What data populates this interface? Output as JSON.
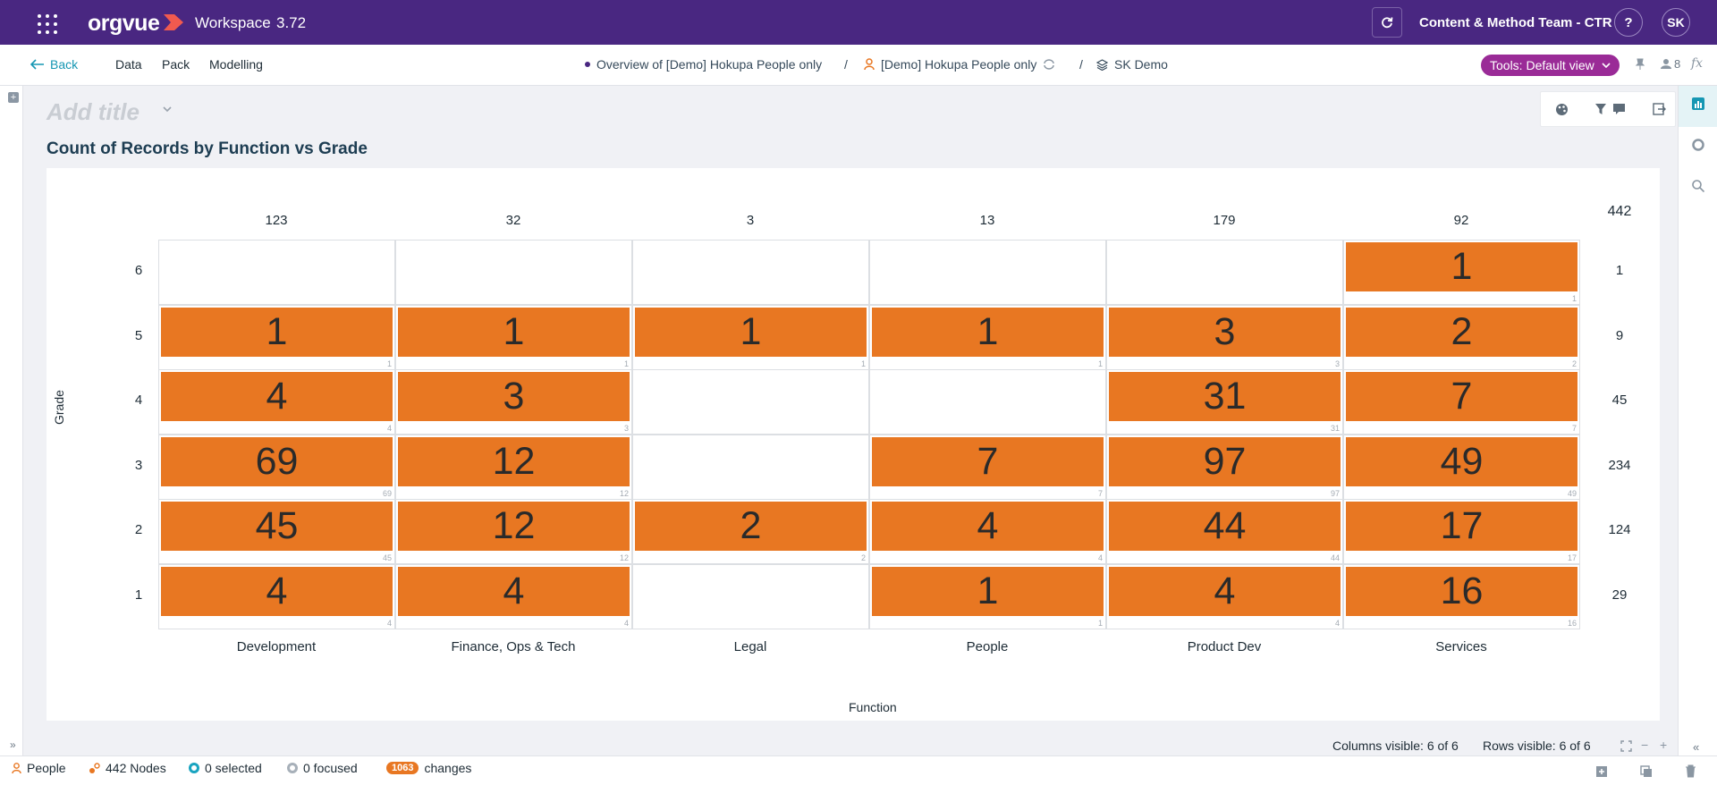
{
  "topbar": {
    "brand": "orgvue",
    "workspace_label": "Workspace",
    "version": "3.72",
    "team": "Content & Method Team - CTR",
    "help": "?",
    "user_initials": "SK"
  },
  "nav": {
    "back": "Back",
    "data": "Data",
    "pack": "Pack",
    "modelling": "Modelling",
    "crumb_view": "Overview of [Demo] Hokupa People only",
    "crumb_dataset": "[Demo] Hokupa People only",
    "crumb_model": "SK Demo",
    "separator": "/",
    "tools": "Tools: Default view",
    "user_count": "8",
    "fx": "fx"
  },
  "page": {
    "add_title": "Add title",
    "chart_title": "Count of Records by Function vs Grade"
  },
  "chart_data": {
    "type": "table",
    "title": "Count of Records by Function vs Grade",
    "xlabel": "Function",
    "ylabel": "Grade",
    "columns": [
      "Development",
      "Finance, Ops & Tech",
      "Legal",
      "People",
      "Product Dev",
      "Services"
    ],
    "rows": [
      "6",
      "5",
      "4",
      "3",
      "2",
      "1"
    ],
    "column_totals": [
      "123",
      "32",
      "3",
      "13",
      "179",
      "92"
    ],
    "row_totals": [
      "1",
      "9",
      "45",
      "234",
      "124",
      "29"
    ],
    "grand_total": "442",
    "values": [
      [
        null,
        null,
        null,
        null,
        null,
        1
      ],
      [
        1,
        1,
        1,
        1,
        3,
        2
      ],
      [
        4,
        3,
        null,
        null,
        31,
        7
      ],
      [
        69,
        12,
        null,
        7,
        97,
        49
      ],
      [
        45,
        12,
        2,
        4,
        44,
        17
      ],
      [
        4,
        4,
        null,
        1,
        4,
        16
      ]
    ]
  },
  "status": {
    "columns_visible": "Columns visible: 6 of 6",
    "rows_visible": "Rows visible: 6 of 6"
  },
  "bottom": {
    "dataset": "People",
    "nodes": "442 Nodes",
    "selected": "0 selected",
    "focused": "0 focused",
    "changes_count": "1063",
    "changes_label": "changes"
  },
  "colors": {
    "header": "#492781",
    "bar": "#e87722",
    "tools": "#9a2b97",
    "accent": "#1697b3"
  }
}
